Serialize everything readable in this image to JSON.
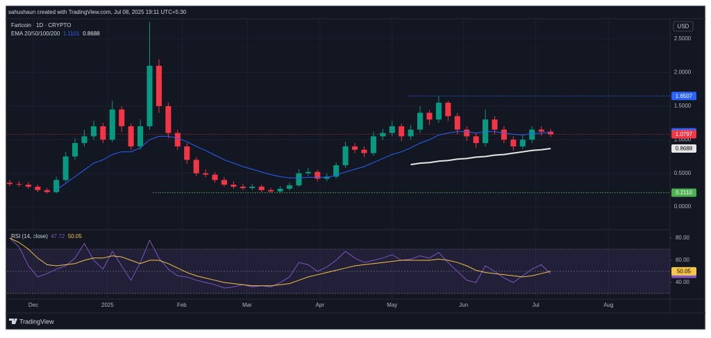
{
  "header": {
    "text": "sahushaun created with TradingView.com, Jul 08, 2025 19:11 UTC+5:30",
    "footer": "TradingView"
  },
  "chart_data": [
    {
      "type": "candlestick",
      "title": "Fartcoin · 1D · CRYPTO",
      "currency": "USD",
      "indicator": "EMA 20/50/100/200",
      "categories": [
        null,
        null,
        null,
        null,
        null,
        null,
        null,
        null,
        null,
        null,
        null,
        null,
        null,
        null,
        null,
        null,
        null,
        null,
        null,
        null,
        null,
        null,
        null,
        null,
        null,
        null,
        null,
        null,
        null,
        null,
        null,
        null,
        null,
        null,
        null,
        null,
        null,
        null,
        null,
        null,
        null,
        null,
        null,
        null,
        null,
        null,
        null,
        null,
        null,
        null,
        null,
        null,
        null,
        null,
        null,
        null,
        null,
        null,
        null
      ],
      "open": [
        0.36,
        0.34,
        0.33,
        0.3,
        0.25,
        0.22,
        0.4,
        0.75,
        0.95,
        1.05,
        1.2,
        1.0,
        1.45,
        1.2,
        0.9,
        1.2,
        2.1,
        1.5,
        1.1,
        0.9,
        0.7,
        0.5,
        0.48,
        0.4,
        0.33,
        0.3,
        0.28,
        0.3,
        0.25,
        0.23,
        0.27,
        0.32,
        0.5,
        0.52,
        0.42,
        0.45,
        0.62,
        0.9,
        0.85,
        0.8,
        1.05,
        1.1,
        1.2,
        1.05,
        1.15,
        1.4,
        1.3,
        1.55,
        1.35,
        1.15,
        1.05,
        0.95,
        1.3,
        1.15,
        1.0,
        0.9,
        1.0,
        1.15,
        1.12
      ],
      "high": [
        0.4,
        0.38,
        0.37,
        0.33,
        0.28,
        0.45,
        0.82,
        1.02,
        1.15,
        1.28,
        1.25,
        1.58,
        1.5,
        1.24,
        1.3,
        2.75,
        2.2,
        1.55,
        1.15,
        0.95,
        0.74,
        0.56,
        0.52,
        0.44,
        0.38,
        0.34,
        0.34,
        0.33,
        0.28,
        0.31,
        0.36,
        0.56,
        0.58,
        0.55,
        0.5,
        0.66,
        0.97,
        0.95,
        0.9,
        1.12,
        1.16,
        1.28,
        1.24,
        1.22,
        1.5,
        1.44,
        1.65,
        1.58,
        1.4,
        1.2,
        1.1,
        1.45,
        1.35,
        1.2,
        1.05,
        1.06,
        1.2,
        1.2,
        1.16
      ],
      "low": [
        0.31,
        0.3,
        0.27,
        0.22,
        0.2,
        0.2,
        0.37,
        0.7,
        0.9,
        1.0,
        0.95,
        0.96,
        1.12,
        0.85,
        0.85,
        1.15,
        1.4,
        1.02,
        0.85,
        0.64,
        0.46,
        0.44,
        0.36,
        0.3,
        0.27,
        0.25,
        0.25,
        0.22,
        0.21,
        0.21,
        0.24,
        0.3,
        0.46,
        0.38,
        0.38,
        0.42,
        0.58,
        0.8,
        0.74,
        0.76,
        1.0,
        1.05,
        0.98,
        1.0,
        1.1,
        1.22,
        1.25,
        1.28,
        1.08,
        0.98,
        0.88,
        0.9,
        1.08,
        0.95,
        0.84,
        0.86,
        0.95,
        1.06,
        1.04
      ],
      "close": [
        0.34,
        0.33,
        0.3,
        0.25,
        0.22,
        0.4,
        0.75,
        0.95,
        1.05,
        1.2,
        1.0,
        1.45,
        1.2,
        0.9,
        1.2,
        2.1,
        1.5,
        1.1,
        0.9,
        0.7,
        0.5,
        0.48,
        0.4,
        0.33,
        0.3,
        0.28,
        0.3,
        0.25,
        0.23,
        0.27,
        0.32,
        0.5,
        0.52,
        0.42,
        0.45,
        0.62,
        0.9,
        0.85,
        0.8,
        1.05,
        1.1,
        1.2,
        1.05,
        1.15,
        1.4,
        1.3,
        1.55,
        1.35,
        1.15,
        1.05,
        0.95,
        1.3,
        1.15,
        1.0,
        0.9,
        1.0,
        1.15,
        1.12,
        1.0797
      ],
      "up_color": "#089981",
      "down_color": "#f23645",
      "series": [
        {
          "color": "#2962ff",
          "values": [
            null,
            null,
            null,
            null,
            null,
            0.25,
            0.35,
            0.45,
            0.55,
            0.65,
            0.7,
            0.78,
            0.82,
            0.82,
            0.88,
            1.0,
            1.05,
            1.05,
            1.02,
            0.97,
            0.9,
            0.84,
            0.77,
            0.7,
            0.65,
            0.6,
            0.56,
            0.52,
            0.48,
            0.45,
            0.43,
            0.43,
            0.44,
            0.44,
            0.44,
            0.47,
            0.52,
            0.56,
            0.6,
            0.66,
            0.72,
            0.78,
            0.82,
            0.88,
            0.95,
            1.0,
            1.07,
            1.1,
            1.12,
            1.12,
            1.1,
            1.12,
            1.12,
            1.1,
            1.08,
            1.07,
            1.09,
            1.1,
            1.1101
          ]
        },
        {
          "color": "#e6e6e6",
          "values": [
            null,
            null,
            null,
            null,
            null,
            null,
            null,
            null,
            null,
            null,
            null,
            null,
            null,
            null,
            null,
            null,
            null,
            null,
            null,
            null,
            null,
            null,
            null,
            null,
            null,
            null,
            null,
            null,
            null,
            null,
            null,
            null,
            null,
            null,
            null,
            null,
            null,
            null,
            null,
            null,
            null,
            null,
            null,
            0.63,
            0.65,
            0.66,
            0.68,
            0.69,
            0.71,
            0.72,
            0.74,
            0.75,
            0.77,
            0.78,
            0.8,
            0.82,
            0.84,
            0.85,
            0.8688
          ]
        }
      ],
      "levels": [
        {
          "value": 1.6507,
          "color": "#2962ff"
        },
        {
          "value": 0.211,
          "label": "0.2110",
          "color": "#4caf50"
        }
      ],
      "xlim": [
        -0.3,
        70.8
      ],
      "xticks": [
        {
          "value": 2.53,
          "label": "Dec"
        },
        {
          "value": 10.49,
          "label": "2025"
        },
        {
          "value": 18.45,
          "label": "Feb"
        },
        {
          "value": 25.45,
          "label": "Mar"
        },
        {
          "value": 33.26,
          "label": "Apr"
        },
        {
          "value": 41.0,
          "label": "May"
        },
        {
          "value": 48.66,
          "label": "Jun"
        },
        {
          "value": 56.4,
          "label": "Jul"
        },
        {
          "value": 64.2,
          "label": "Aug"
        }
      ],
      "ylim": [
        -0.33,
        2.79
      ],
      "yticks": [
        {
          "value": 0,
          "label": "0.0000"
        },
        {
          "value": 0.5,
          "label": "0.5000"
        },
        {
          "value": 1,
          "label": "1.0000"
        },
        {
          "value": 1.5,
          "label": "1.5000"
        },
        {
          "value": 2,
          "label": "2.0000"
        },
        {
          "value": 2.5,
          "label": "2.5000"
        }
      ]
    },
    {
      "type": "line",
      "title": "RSI (14, close)",
      "series": [
        {
          "color": "#7e57c2",
          "values": [
            80,
            72,
            55,
            45,
            48,
            52,
            55,
            62,
            75,
            60,
            52,
            68,
            55,
            42,
            58,
            78,
            62,
            52,
            46,
            45,
            42,
            40,
            38,
            35,
            36,
            38,
            36,
            37,
            36,
            40,
            45,
            58,
            56,
            50,
            54,
            60,
            68,
            62,
            58,
            60,
            62,
            65,
            60,
            61,
            64,
            62,
            67,
            58,
            50,
            42,
            40,
            55,
            50,
            44,
            40,
            46,
            52,
            56,
            47.72
          ]
        },
        {
          "color": "#f7c548",
          "values": [
            80,
            76,
            70,
            62,
            56,
            55,
            56,
            57,
            60,
            62,
            62,
            64,
            63,
            60,
            57,
            60,
            60,
            57,
            53,
            49,
            46,
            44,
            42,
            40,
            39,
            38,
            37,
            37,
            37,
            38,
            39,
            42,
            45,
            47,
            49,
            51,
            53,
            55,
            56,
            57,
            58,
            59,
            60,
            60,
            60,
            60,
            61,
            60,
            58,
            55,
            51,
            49,
            48,
            47,
            46,
            45,
            46,
            48,
            50.05
          ]
        }
      ],
      "band": [
        30,
        50,
        70
      ],
      "band_color": "#7e57c2",
      "ylim": [
        25.6,
        86.25
      ],
      "yticks": [
        {
          "value": 40,
          "label": "40.00"
        },
        {
          "value": 60,
          "label": "60.00"
        },
        {
          "value": 80,
          "label": "80.00"
        }
      ]
    }
  ]
}
